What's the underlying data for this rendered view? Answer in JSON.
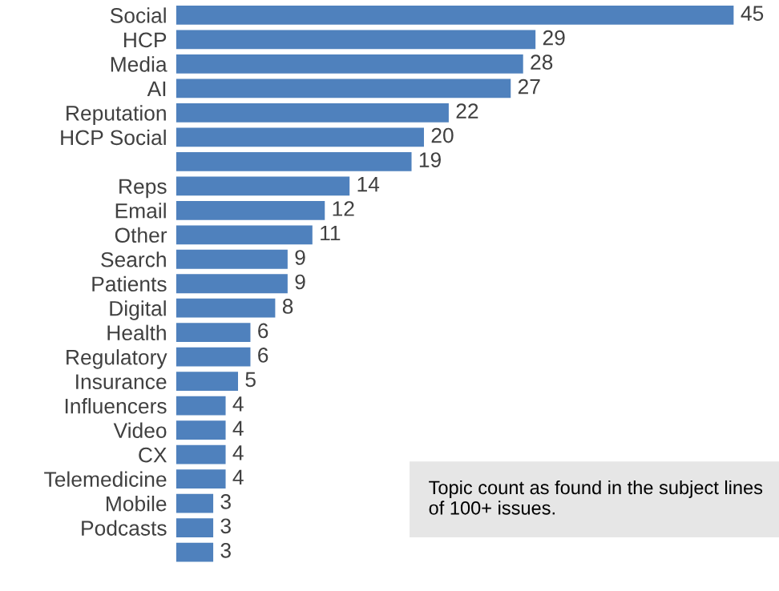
{
  "chart_data": {
    "type": "bar",
    "orientation": "horizontal",
    "data_labels": true,
    "categories": [
      "Social",
      "HCP",
      "Media",
      "AI",
      "Reputation",
      "HCP Social",
      null,
      "Reps",
      "Email",
      "Other",
      "Search",
      "Patients",
      "Digital",
      "Health",
      "Regulatory",
      "Insurance",
      "Influencers",
      "Video",
      "CX",
      "Telemedicine",
      "Mobile",
      "Podcasts",
      null
    ],
    "values": [
      45,
      29,
      28,
      27,
      22,
      20,
      19,
      14,
      12,
      11,
      9,
      9,
      8,
      6,
      6,
      5,
      4,
      4,
      4,
      4,
      3,
      3,
      3
    ],
    "color": "#4f81bd",
    "annotations": [
      "Topic count as found in the subject lines of 100+ issues."
    ]
  }
}
